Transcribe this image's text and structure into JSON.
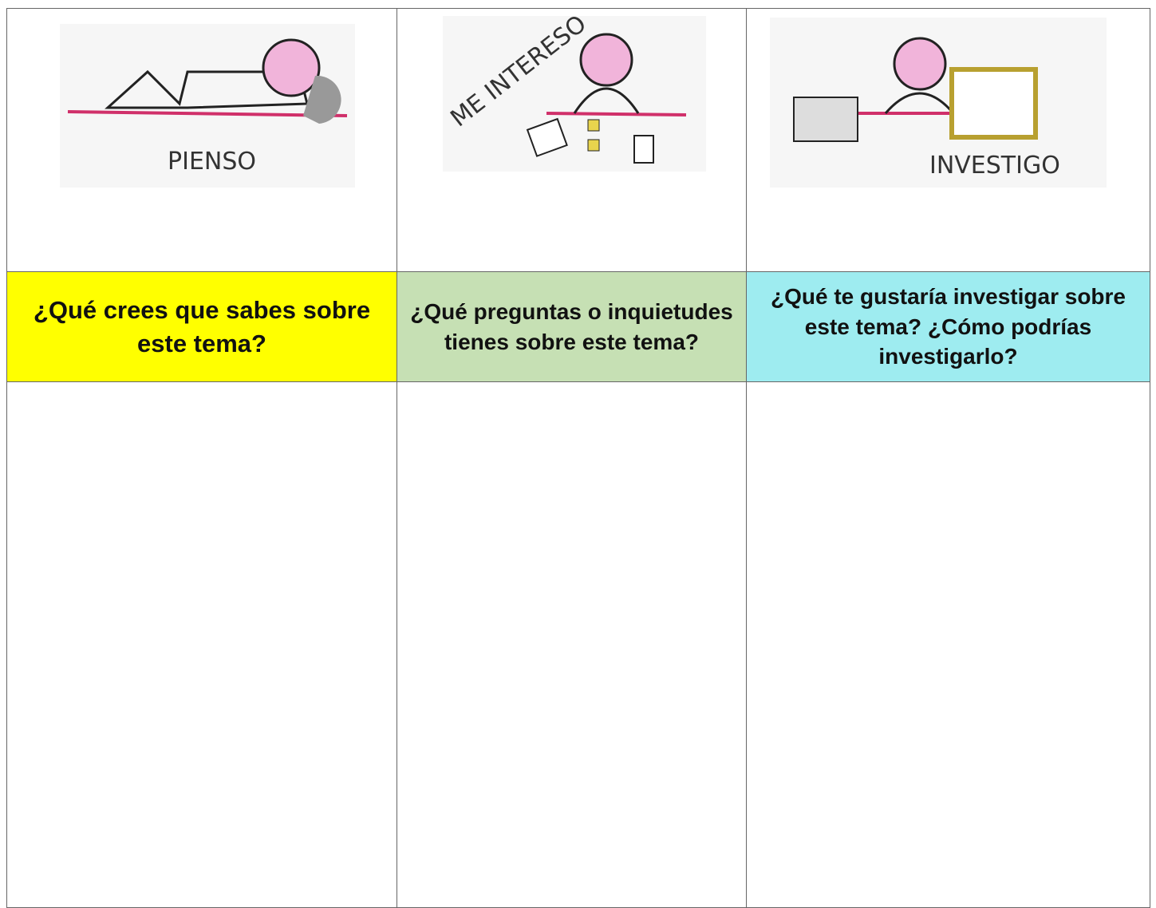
{
  "columns": [
    {
      "image_label": "PIENSO",
      "question": "¿Qué crees que sabes sobre este tema?"
    },
    {
      "image_label": "ME INTERESO",
      "question": "¿Qué preguntas o inquietudes tienes sobre este tema?"
    },
    {
      "image_label": "INVESTIGO",
      "question": "¿Qué te gustaría investigar sobre este tema? ¿Cómo podrías investigarlo?"
    }
  ]
}
